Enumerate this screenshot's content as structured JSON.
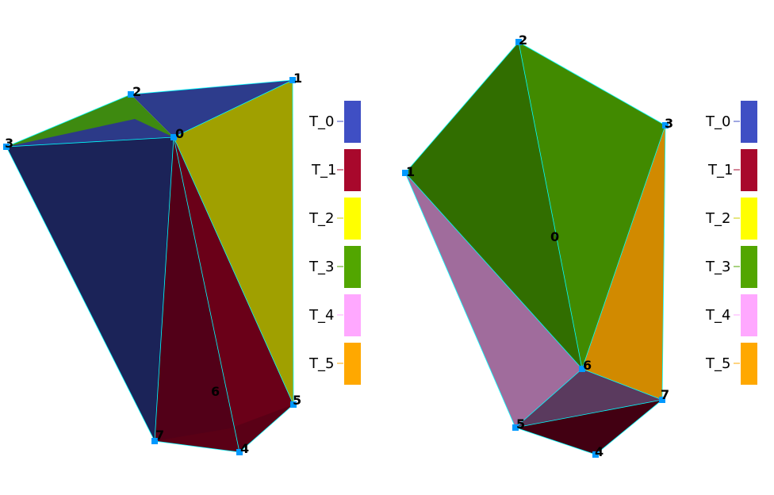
{
  "colors": {
    "T_0": "#3f4fc4",
    "T_1": "#a8082c",
    "T_2": "#ffff00",
    "T_3": "#52a600",
    "T_4": "#ffa8ff",
    "T_5": "#ffa800",
    "edge": "#00ffff",
    "vertex": "#0099ff"
  },
  "left_view": {
    "vertex_labels": [
      "0",
      "1",
      "2",
      "3",
      "4",
      "5",
      "6",
      "7"
    ],
    "legend": [
      "T_0",
      "T_1",
      "T_2",
      "T_3",
      "T_4",
      "T_5"
    ]
  },
  "right_view": {
    "vertex_labels": [
      "0",
      "1",
      "2",
      "3",
      "4",
      "5",
      "6",
      "7"
    ],
    "legend": [
      "T_0",
      "T_1",
      "T_2",
      "T_3",
      "T_4",
      "T_5"
    ]
  }
}
